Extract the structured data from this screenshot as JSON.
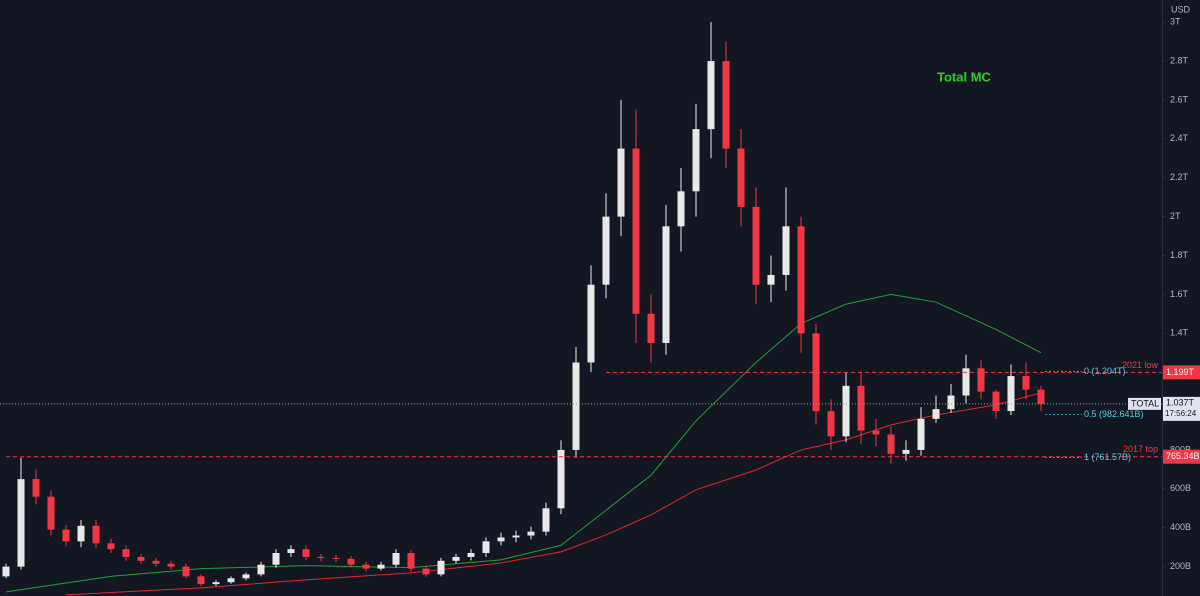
{
  "chart_data": {
    "type": "candlestick",
    "title": "Total MC",
    "axis_label": "USD",
    "open": [
      150,
      200,
      650,
      560,
      390,
      330,
      410,
      320,
      290,
      250,
      230,
      215,
      200,
      150,
      110,
      120,
      140,
      160,
      210,
      270,
      290,
      250,
      245,
      240,
      210,
      190,
      210,
      270,
      190,
      160,
      230,
      250,
      270,
      330,
      350,
      360,
      380,
      500,
      800,
      1250,
      1650,
      2000,
      2350,
      1500,
      1350,
      1950,
      2130,
      2450,
      2800,
      2350,
      2050,
      1650,
      1700,
      1950,
      1400,
      1000,
      870,
      1130,
      900,
      880,
      780,
      800,
      960,
      1010,
      1080,
      1220,
      1100,
      1000,
      1180,
      1110
    ],
    "high": [
      215,
      760,
      700,
      590,
      415,
      440,
      440,
      345,
      310,
      265,
      245,
      230,
      215,
      160,
      130,
      150,
      170,
      225,
      290,
      310,
      310,
      265,
      260,
      255,
      225,
      225,
      290,
      285,
      205,
      245,
      265,
      290,
      350,
      375,
      385,
      405,
      530,
      850,
      1330,
      1750,
      2120,
      2600,
      2550,
      1600,
      2060,
      2250,
      2580,
      3000,
      2900,
      2450,
      2150,
      1800,
      2150,
      2000,
      1450,
      1060,
      1200,
      1200,
      960,
      920,
      850,
      1020,
      1080,
      1140,
      1290,
      1260,
      1110,
      1240,
      1250,
      1130
    ],
    "low": [
      140,
      185,
      520,
      360,
      305,
      300,
      295,
      270,
      230,
      215,
      200,
      185,
      140,
      100,
      100,
      112,
      130,
      150,
      195,
      250,
      232,
      228,
      223,
      195,
      175,
      180,
      195,
      175,
      148,
      150,
      215,
      232,
      250,
      310,
      325,
      340,
      360,
      470,
      760,
      1200,
      1580,
      1900,
      1350,
      1250,
      1290,
      1820,
      2000,
      2300,
      2250,
      1950,
      1550,
      1560,
      1620,
      1300,
      930,
      800,
      840,
      830,
      820,
      730,
      745,
      770,
      940,
      990,
      1040,
      1060,
      960,
      980,
      1060,
      1000
    ],
    "close": [
      200,
      650,
      560,
      390,
      330,
      410,
      320,
      290,
      250,
      230,
      215,
      200,
      150,
      110,
      120,
      140,
      160,
      210,
      270,
      290,
      250,
      245,
      240,
      210,
      190,
      210,
      270,
      190,
      160,
      230,
      250,
      270,
      330,
      350,
      360,
      380,
      500,
      800,
      1250,
      1650,
      2000,
      2350,
      1500,
      1350,
      1950,
      2130,
      2450,
      2800,
      2350,
      2050,
      1650,
      1700,
      1950,
      1400,
      1000,
      870,
      1130,
      900,
      880,
      780,
      800,
      960,
      1010,
      1080,
      1220,
      1100,
      1000,
      1180,
      1110,
      1037
    ],
    "candle_colors": {
      "up": "#e8e8e8",
      "down": "#f23645"
    },
    "overlays": [
      {
        "color": "#1e9e3a",
        "x": [
          0,
          7,
          13,
          20,
          27,
          33,
          37,
          40,
          43,
          46,
          50,
          53,
          56,
          59,
          62,
          66,
          69
        ],
        "values": [
          70,
          150,
          190,
          205,
          195,
          235,
          310,
          490,
          670,
          950,
          1250,
          1450,
          1550,
          1600,
          1560,
          1420,
          1300
        ]
      },
      {
        "color": "#e0252f",
        "x": [
          4,
          13,
          20,
          27,
          33,
          37,
          40,
          43,
          46,
          50,
          53,
          56,
          59,
          62,
          66,
          69
        ],
        "values": [
          55,
          91,
          132,
          168,
          219,
          276,
          363,
          466,
          595,
          697,
          800,
          852,
          929,
          980,
          1032,
          1094
        ]
      }
    ],
    "hlines": [
      {
        "name": "2021 low",
        "value": 1199,
        "value_label": "1.199T",
        "from": 40,
        "color": "#f23645"
      },
      {
        "name": "2017 top",
        "value": 765.34,
        "value_label": "765.34B",
        "from": 0,
        "color": "#f23645"
      }
    ],
    "fib_levels": [
      {
        "label": "0 (1.204T)",
        "value": 1204
      },
      {
        "label": "0.5 (982.641B)",
        "value": 982.641
      },
      {
        "label": "1 (761.57B)",
        "value": 761.57
      }
    ],
    "last_price": {
      "symbol": "TOTAL",
      "value": 1037,
      "value_label": "1.037T",
      "countdown": "17:56:24"
    },
    "ylim": [
      49,
      3114
    ],
    "yticks": [
      {
        "value": 200,
        "label": "200B"
      },
      {
        "value": 400,
        "label": "400B"
      },
      {
        "value": 600,
        "label": "600B"
      },
      {
        "value": 800,
        "label": "800B"
      },
      {
        "value": 1400,
        "label": "1.4T"
      },
      {
        "value": 1600,
        "label": "1.6T"
      },
      {
        "value": 1800,
        "label": "1.8T"
      },
      {
        "value": 2000,
        "label": "2T"
      },
      {
        "value": 2200,
        "label": "2.2T"
      },
      {
        "value": 2400,
        "label": "2.4T"
      },
      {
        "value": 2600,
        "label": "2.6T"
      },
      {
        "value": 2800,
        "label": "2.8T"
      },
      {
        "value": 3000,
        "label": "3T"
      }
    ]
  }
}
